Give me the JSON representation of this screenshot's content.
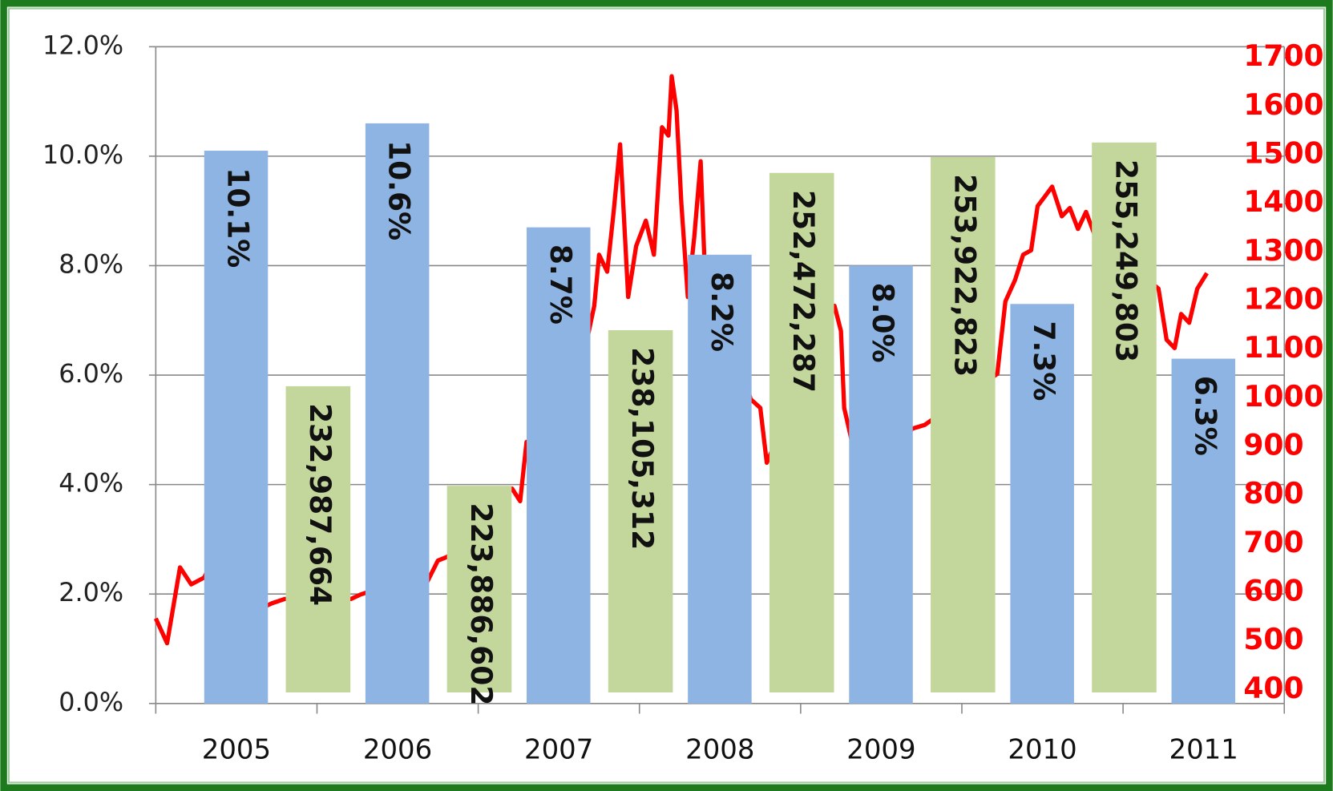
{
  "chart_data": {
    "type": "bar",
    "categories": [
      "2005",
      "2006",
      "2007",
      "2008",
      "2009",
      "2010",
      "2011"
    ],
    "series": [
      {
        "color": "#8eb4e3",
        "values": [
          10.1,
          10.6,
          8.7,
          8.2,
          8.0,
          7.3,
          6.3
        ],
        "value_labels": [
          "10.1%",
          "10.6%",
          "8.7%",
          "8.2%",
          "8.0%",
          "7.3%",
          "6.3%"
        ]
      },
      {
        "color": "#c3d69b",
        "axis": "y3",
        "values": [
          232987664,
          223886602,
          238105312,
          252472287,
          253922823,
          255249803,
          null
        ],
        "value_labels": [
          "232,987,664",
          "223,886,602",
          "238,105,312",
          "252,472,287",
          "253,922,823",
          "255,249,803",
          null
        ]
      },
      {
        "type": "line",
        "color": "#ff0000",
        "axis": "y2",
        "x": [
          2005.0,
          2005.07,
          2005.15,
          2005.22,
          2005.3,
          2005.36,
          2005.42,
          2005.46,
          2005.49,
          2005.53,
          2005.57,
          2005.64,
          2005.72,
          2005.8,
          2005.88,
          2006.21,
          2006.27,
          2006.35,
          2006.43,
          2006.51,
          2006.59,
          2006.67,
          2006.75,
          2006.81,
          2007.21,
          2007.26,
          2007.3,
          2007.34,
          2007.39,
          2007.44,
          2007.49,
          2007.55,
          2007.62,
          2007.67,
          2007.72,
          2007.75,
          2007.8,
          2007.84,
          2007.88,
          2007.93,
          2007.98,
          2008.04,
          2008.09,
          2008.14,
          2008.18,
          2008.2,
          2008.23,
          2008.26,
          2008.3,
          2008.34,
          2008.38,
          2008.42,
          2008.46,
          2008.5,
          2008.54,
          2008.57,
          2008.62,
          2008.66,
          2008.69,
          2008.75,
          2008.79,
          2009.21,
          2009.25,
          2009.27,
          2009.33,
          2009.38,
          2009.43,
          2009.48,
          2009.54,
          2009.59,
          2009.64,
          2009.69,
          2009.77,
          2010.22,
          2010.27,
          2010.33,
          2010.38,
          2010.43,
          2010.47,
          2010.52,
          2010.56,
          2010.62,
          2010.67,
          2010.72,
          2010.77,
          2010.83,
          2011.22,
          2011.27,
          2011.32,
          2011.36,
          2011.41,
          2011.46,
          2011.52
        ],
        "values": [
          547,
          496,
          652,
          617,
          631,
          671,
          744,
          683,
          718,
          666,
          587,
          566,
          578,
          587,
          587,
          587,
          596,
          605,
          587,
          535,
          547,
          613,
          666,
          674,
          814,
          788,
          910,
          814,
          858,
          910,
          989,
          963,
          1085,
          1112,
          1190,
          1295,
          1260,
          1383,
          1522,
          1208,
          1313,
          1365,
          1295,
          1557,
          1540,
          1662,
          1592,
          1400,
          1208,
          1330,
          1487,
          1138,
          910,
          876,
          910,
          788,
          876,
          1033,
          998,
          980,
          867,
          1190,
          1138,
          980,
          893,
          998,
          1050,
          1015,
          963,
          945,
          910,
          937,
          945,
          1050,
          1199,
          1243,
          1295,
          1304,
          1395,
          1417,
          1435,
          1374,
          1391,
          1348,
          1383,
          1330,
          1225,
          1120,
          1103,
          1173,
          1155,
          1225,
          1257
        ]
      }
    ],
    "xlim": [
      2005,
      2012
    ],
    "ylim": [
      0,
      12
    ],
    "yticks": [
      {
        "value": 0,
        "label": "0.0%"
      },
      {
        "value": 2,
        "label": "2.0%"
      },
      {
        "value": 4,
        "label": "4.0%"
      },
      {
        "value": 6,
        "label": "6.0%"
      },
      {
        "value": 8,
        "label": "8.0%"
      },
      {
        "value": 10,
        "label": "10.0%"
      },
      {
        "value": 12,
        "label": "12.0%"
      }
    ],
    "y2lim": [
      400,
      1700
    ],
    "y2ticks": [
      400,
      500,
      600,
      700,
      800,
      900,
      1000,
      1100,
      1200,
      1300,
      1400,
      1500,
      1600,
      1700
    ],
    "y3lim": [
      204000000,
      264000000
    ],
    "grid": true
  }
}
